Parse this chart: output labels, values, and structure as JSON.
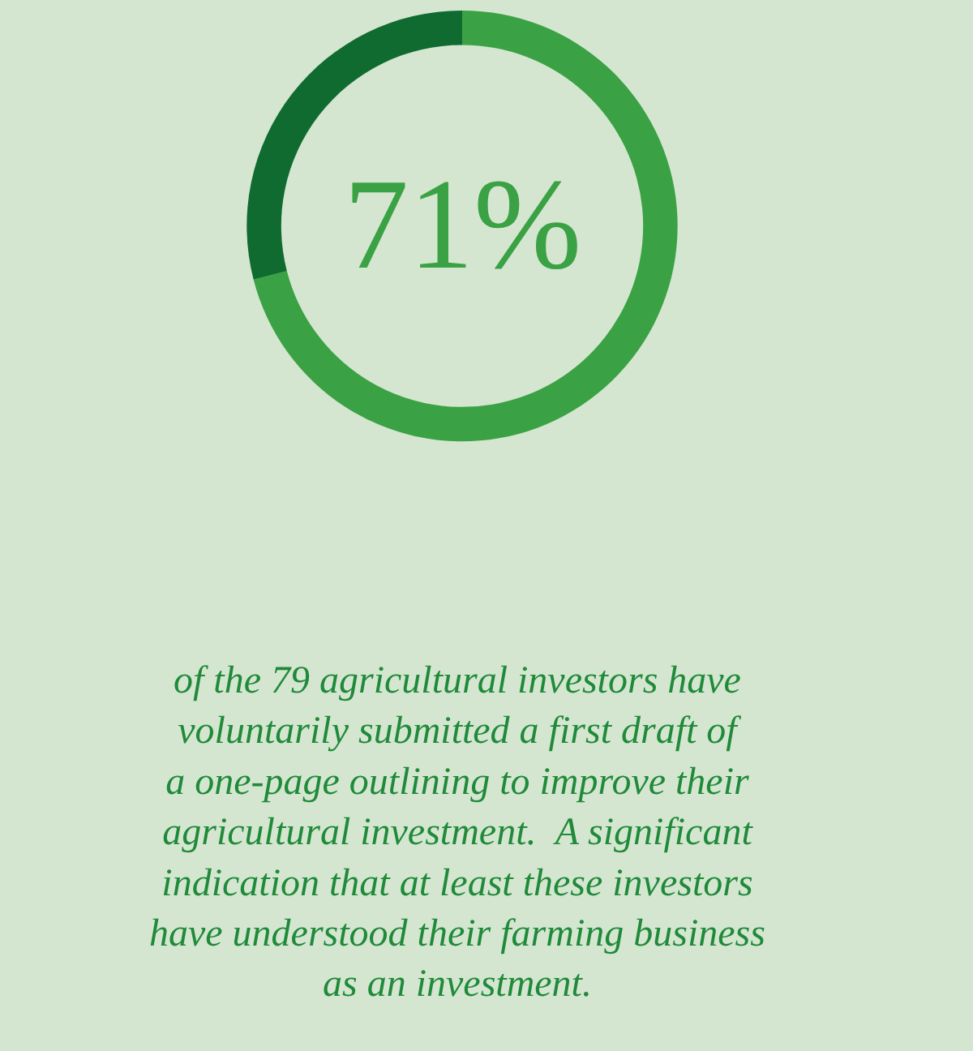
{
  "chart_data": {
    "type": "donut",
    "categories": [
      null,
      null
    ],
    "values": [
      71,
      29
    ],
    "colors": [
      "#3aa244",
      "#0f6b2f"
    ],
    "annotations": [
      "71%",
      "of the 79 agricultural investors have\nvoluntarily submitted a first draft of\na one-page outlining to improve their\nagricultural investment.  A significant\nindication that at least these investors\nhave understood their farming business\nas an investment."
    ]
  }
}
